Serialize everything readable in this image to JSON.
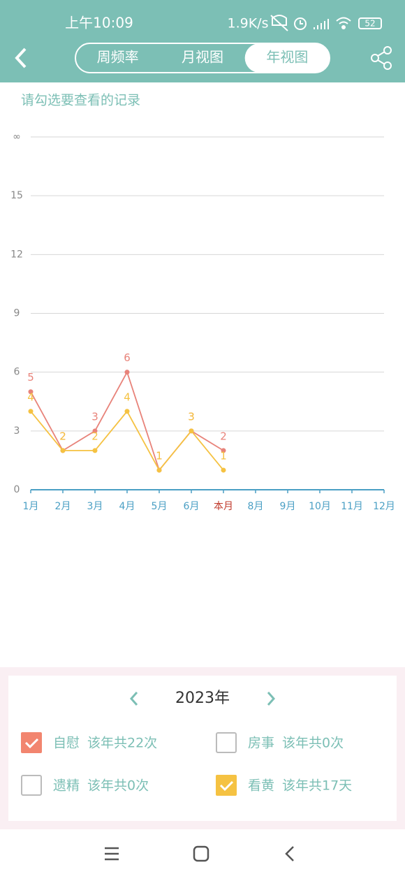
{
  "status_bar": {
    "time": "上午10:09",
    "speed": "1.9K/s",
    "battery": "52"
  },
  "nav": {
    "tabs": [
      "周频率",
      "月视图",
      "年视图"
    ],
    "selected": 2
  },
  "hint": "请勾选要查看的记录",
  "chart_data": {
    "type": "line",
    "categories": [
      "1月",
      "2月",
      "3月",
      "4月",
      "5月",
      "6月",
      "本月",
      "8月",
      "9月",
      "10月",
      "11月",
      "12月"
    ],
    "highlight_index": 6,
    "highlight_color": "#c0392b",
    "series": [
      {
        "color": "#e8837a",
        "values": [
          5,
          2,
          3,
          6,
          1,
          3,
          2,
          null,
          null,
          null,
          null,
          null
        ]
      },
      {
        "color": "#f5c242",
        "values": [
          4,
          2,
          2,
          4,
          1,
          3,
          1,
          null,
          null,
          null,
          null,
          null
        ]
      }
    ],
    "ylim": [
      0,
      18
    ],
    "yticks": [
      0,
      3,
      6,
      9,
      12,
      15,
      {
        "value": 18,
        "label": "∞"
      }
    ],
    "grid": true
  },
  "year": "2023年",
  "filters": [
    {
      "label": "自慰",
      "summary": "该年共22次",
      "checked": true,
      "color": "#f2856f"
    },
    {
      "label": "房事",
      "summary": "该年共0次",
      "checked": false,
      "color": "#f2856f"
    },
    {
      "label": "遗精",
      "summary": "该年共0次",
      "checked": false,
      "color": "#f2856f"
    },
    {
      "label": "看黄",
      "summary": "该年共17天",
      "checked": true,
      "color": "#f5c242"
    }
  ]
}
